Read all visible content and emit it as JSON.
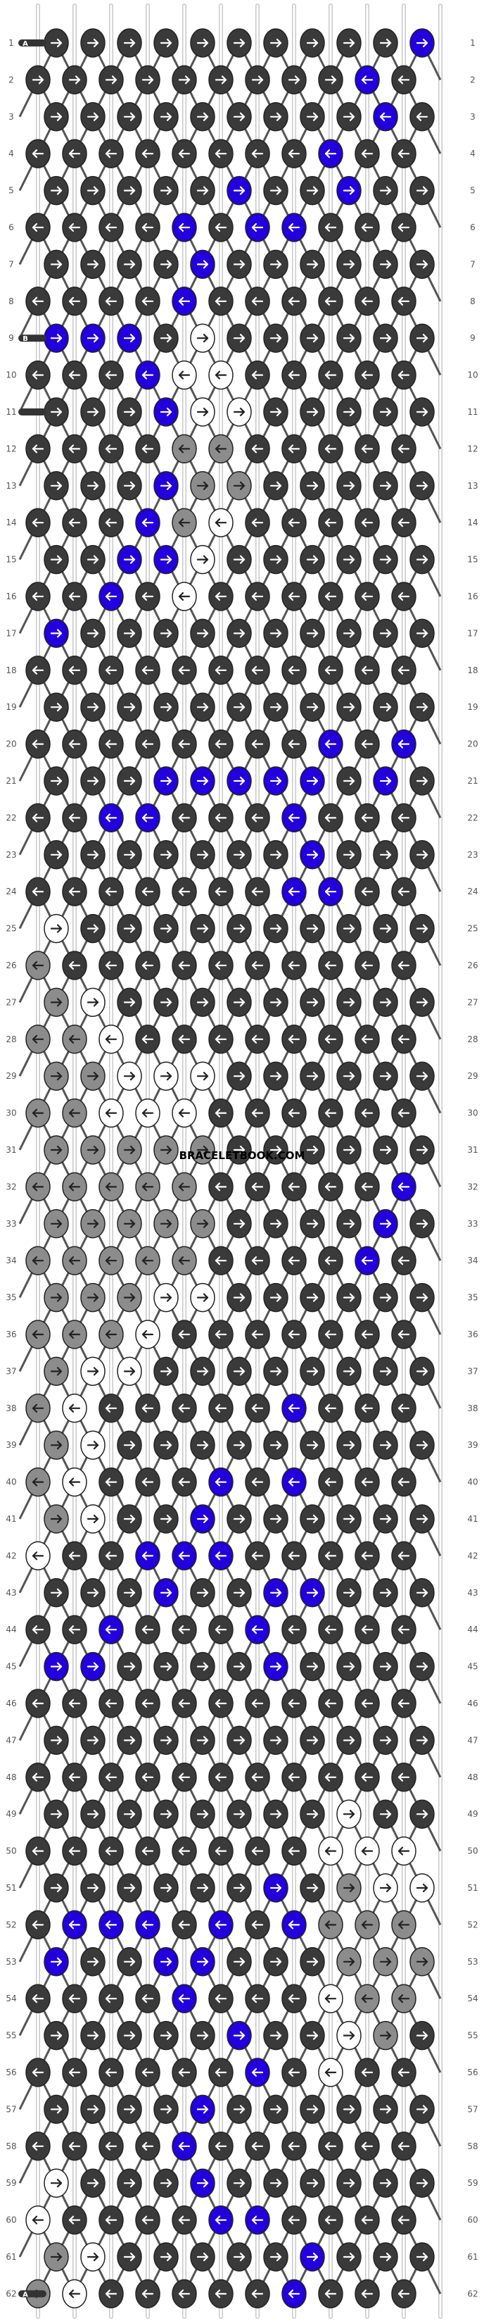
{
  "rows": [
    "1",
    "2",
    "3",
    "4",
    "5",
    "6",
    "7",
    "8",
    "9",
    "10",
    "11",
    "12",
    "13",
    "14",
    "15",
    "16",
    "17",
    "18",
    "19",
    "20",
    "21",
    "22",
    "23",
    "24",
    "25",
    "26",
    "27",
    "28",
    "29",
    "30",
    "31",
    "32",
    "33",
    "34",
    "35",
    "36",
    "37",
    "38",
    "39",
    "40",
    "41",
    "42",
    "43",
    "44",
    "45",
    "46",
    "47",
    "48",
    "49",
    "50",
    "51",
    "52",
    "53",
    "54",
    "55",
    "56",
    "57",
    "58",
    "59",
    "60",
    "61",
    "62"
  ],
  "string_labels": {
    "a": "A",
    "b": "B",
    "c": "C"
  },
  "watermark": "BRACELETBOOK.COM",
  "colors": {
    "dark": "#3a3a3a",
    "blue": "#2200dd",
    "gray": "#8c8c8c",
    "white": "#ffffff",
    "arrow_dark": "#ffffff",
    "arrow_light": "#222222",
    "row_number": "#555555"
  },
  "legend": "knot colors: D dark, U blue, G gray, W white; arrows: > forward, < backward",
  "knot_rows": [
    {
      "colors": "DDDDDDDDDDU",
      "arrows": ">>>>>>>>>>>"
    },
    {
      "colors": "DDDDDDDDDUD",
      "arrows": ">>>>>>>>><<"
    },
    {
      "colors": "DDDDDDDDDUD",
      "arrows": ">>>>>>>>><<"
    },
    {
      "colors": "DDDDDDDDUDD",
      "arrows": "<<<<<<<<<<<"
    },
    {
      "colors": "DDDDDUDDUDD",
      "arrows": ">>>>>>>>>>>"
    },
    {
      "colors": "DDDDUDUUDDD",
      "arrows": "<<<<<<<<<<<"
    },
    {
      "colors": "DDDDUDDDDDD",
      "arrows": ">>>>>>>>>>>"
    },
    {
      "colors": "DDDDUDDDDDD",
      "arrows": "<<<<<<<<<<<"
    },
    {
      "colors": "UUUDWDDDDDD",
      "arrows": ">>>>>>>>>>>"
    },
    {
      "colors": "DDDUWWDDDDD",
      "arrows": "<<<<<<<<<<<"
    },
    {
      "colors": "DDDUWWDDDDD",
      "arrows": ">>>>>>>>>>>"
    },
    {
      "colors": "DDDDGGDDDDD",
      "arrows": "<<<<<<<<<<<"
    },
    {
      "colors": "DDDUGGDDDDD",
      "arrows": ">>>>>>>>>>>"
    },
    {
      "colors": "DDDUGWDDDDD",
      "arrows": "<<<<<<<<<<<"
    },
    {
      "colors": "DDUUWDDDDDD",
      "arrows": ">>>>>>>>>>>"
    },
    {
      "colors": "DDUDWDDDDDD",
      "arrows": "<<<<<<<<<<<"
    },
    {
      "colors": "UDDDDDDDDDD",
      "arrows": ">>>>>>>>>>>"
    },
    {
      "colors": "DDDDDDDDDDD",
      "arrows": "<<<<<<<<<<<"
    },
    {
      "colors": "DDDDDDDDDDD",
      "arrows": ">>>>>>>>>>>"
    },
    {
      "colors": "DDDDDDDDUDU",
      "arrows": "<<<<<<<<<<<"
    },
    {
      "colors": "DDDUUUUUDUD",
      "arrows": ">>>>>>>>>>>"
    },
    {
      "colors": "DDUUDDDUDDD",
      "arrows": "<<<<<<<<<<<"
    },
    {
      "colors": "DDDDDDDUDDD",
      "arrows": ">>>>>>>>>>>"
    },
    {
      "colors": "DDDDDDDUUDD",
      "arrows": "<<<<<<<<<<<"
    },
    {
      "colors": "WDDDDDDDDDD",
      "arrows": ">>>>>>>>>>>"
    },
    {
      "colors": "GDDDDDDDDDD",
      "arrows": "<<<<<<<<<<<"
    },
    {
      "colors": "GWDDDDDDDDD",
      "arrows": ">>>>>>>>>>>"
    },
    {
      "colors": "GGWDDDDDDDD",
      "arrows": "<<<<<<<<<<<"
    },
    {
      "colors": "GGWWWDDDDDD",
      "arrows": ">>>>>>>>>>>"
    },
    {
      "colors": "GGWWWDDDDDD",
      "arrows": "<<<<<<<<<<<"
    },
    {
      "colors": "GGGGGDDDDDD",
      "arrows": ">>>>>>>>>>>"
    },
    {
      "colors": "GGGGGDDDDDU",
      "arrows": "<<<<<<<<<<<"
    },
    {
      "colors": "GGGGGDDDDUD",
      "arrows": ">>>>>>>>>>>"
    },
    {
      "colors": "GGGGGDDDDUD",
      "arrows": "<<<<<<<<<<<"
    },
    {
      "colors": "GGGWWDDDDDD",
      "arrows": ">>>>>>>>>>>"
    },
    {
      "colors": "GGGWDDDDDDD",
      "arrows": "<<<<<<<<<<<"
    },
    {
      "colors": "GWWDDDDDDDD",
      "arrows": ">>>>>>>>>>>"
    },
    {
      "colors": "GWDDDDDUDDD",
      "arrows": "<<<<<<<<<<<"
    },
    {
      "colors": "GWDDDDDDDDD",
      "arrows": ">>>>>>>>>>>"
    },
    {
      "colors": "GWDDDUDUDDD",
      "arrows": "<<<<<<<<<<<"
    },
    {
      "colors": "GWDDUDDDDDD",
      "arrows": ">>>>>>>>>>>"
    },
    {
      "colors": "WDDUUUDDDDD",
      "arrows": "<<<<<<<<<<<"
    },
    {
      "colors": "DDDUDDUUDDD",
      "arrows": ">>>>>>>>>>>"
    },
    {
      "colors": "DDUDDDUDDDD",
      "arrows": "<<<<<<<<<<<"
    },
    {
      "colors": "UUDDDDUDDDD",
      "arrows": ">>>>>>>>>>>"
    },
    {
      "colors": "DDDDDDDDDDD",
      "arrows": "<<<<<<<<<<<"
    },
    {
      "colors": "DDDDDDDDDDD",
      "arrows": ">>>>>>>>>>>"
    },
    {
      "colors": "DDDDDDDDDDD",
      "arrows": "<<<<<<<<<<<"
    },
    {
      "colors": "DDDDDDDDWDD",
      "arrows": ">>>>>>>>>>>"
    },
    {
      "colors": "DDDDDDDDWWW",
      "arrows": "<<<<<<<<<<<"
    },
    {
      "colors": "DDDDDDUDGWW",
      "arrows": ">>>>>>>>>>>"
    },
    {
      "colors": "DUUUDUDUGGG",
      "arrows": "<<<<<<<<<<<"
    },
    {
      "colors": "UDDUUDDDGGG",
      "arrows": ">>>>>>>>>>>"
    },
    {
      "colors": "DDDDUDDDWGG",
      "arrows": "<<<<<<<<<<<"
    },
    {
      "colors": "DDDDDUDDWGD",
      "arrows": ">>>>>>>>>>>"
    },
    {
      "colors": "DDDDDDUDWDD",
      "arrows": "<<<<<<<<<<<"
    },
    {
      "colors": "DDDDUDDDDDD",
      "arrows": ">>>>>>>>>>>"
    },
    {
      "colors": "DDDDUDDDDDD",
      "arrows": "<<<<<<<<<<<"
    },
    {
      "colors": "WDDDUDDDDDD",
      "arrows": ">>>>>>>>>>>"
    },
    {
      "colors": "WDDDDUUDDDD",
      "arrows": "<<<<<<<<<<<"
    },
    {
      "colors": "GWDDDDDUDDD",
      "arrows": ">>>>>>>>>>>"
    },
    {
      "colors": "GWDDDDDUDDD",
      "arrows": "<<<<<<<<<<<"
    }
  ]
}
